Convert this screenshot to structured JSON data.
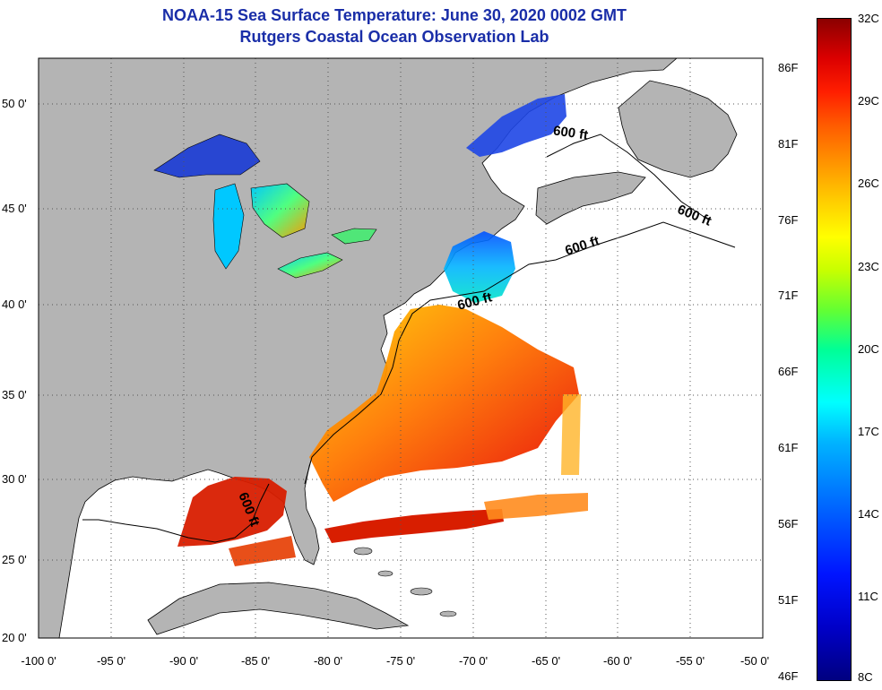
{
  "title": {
    "line1": "NOAA-15 Sea Surface Temperature:  June 30, 2020 0002 GMT",
    "line2": "Rutgers Coastal Ocean Observation Lab"
  },
  "map": {
    "lon_labels": [
      "-100 0'",
      "-95 0'",
      "-90 0'",
      "-85 0'",
      "-80 0'",
      "-75 0'",
      "-70 0'",
      "-65 0'",
      "-60 0'",
      "-55 0'",
      "-50 0'"
    ],
    "lat_labels": [
      "50 0'",
      "45 0'",
      "40 0'",
      "35 0'",
      "30 0'",
      "25 0'",
      "20 0'"
    ],
    "contour_labels": [
      "600 ft",
      "600 ft",
      "600 ft",
      "600 ft",
      "600 ft"
    ],
    "colors": {
      "land": "#b4b4b4",
      "ocean_no_data": "#ffffff",
      "grid": "#555555"
    }
  },
  "colorbar": {
    "fahrenheit_labels": [
      "86F",
      "81F",
      "76F",
      "71F",
      "66F",
      "61F",
      "56F",
      "51F",
      "46F"
    ],
    "celsius_labels": [
      "32C",
      "29C",
      "26C",
      "23C",
      "20C",
      "17C",
      "14C",
      "11C",
      "8C"
    ]
  }
}
